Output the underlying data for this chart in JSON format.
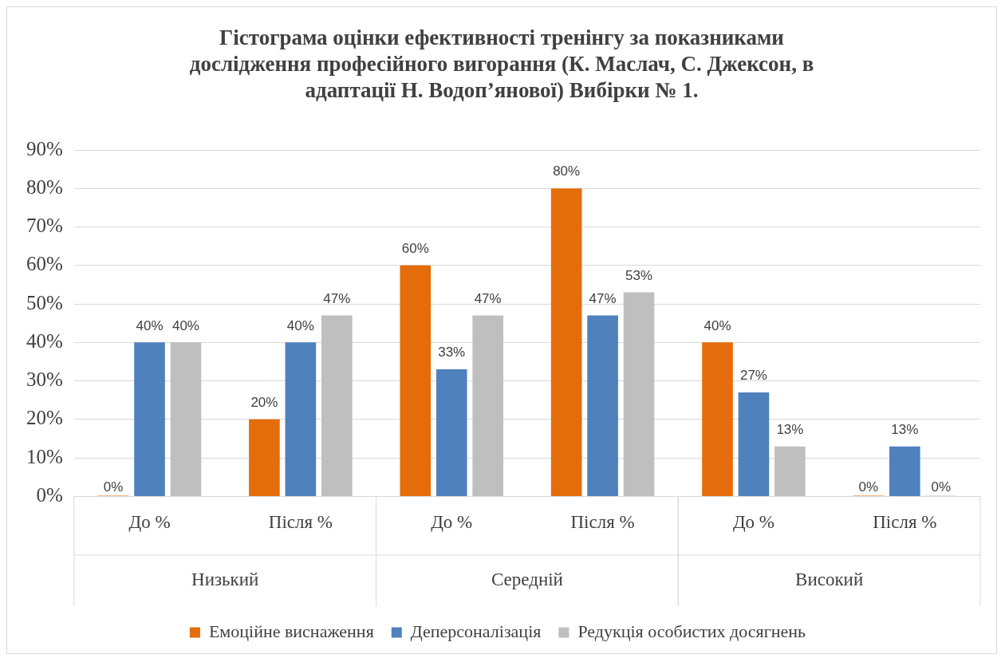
{
  "chart_data": {
    "type": "bar",
    "title": "Гістограма оцінки ефективності тренінгу за показниками дослідження професійного вигорання (К. Маслач, С. Джексон, в адаптації Н. Водоп’янової) Вибірки № 1.",
    "categories": [
      "До %",
      "Після %",
      "До %",
      "Після %",
      "До %",
      "Після %"
    ],
    "annotations": [
      "Низький",
      "Середній",
      "Високий"
    ],
    "series": [
      {
        "name": "Емоційне виснаження",
        "color": "#e46c0a",
        "values": [
          0,
          20,
          60,
          80,
          40,
          0
        ],
        "value_labels": [
          "0%",
          "20%",
          "60%",
          "80%",
          "40%",
          "0%"
        ]
      },
      {
        "name": "Деперсоналізація",
        "color": "#4f81bd",
        "values": [
          40,
          40,
          33,
          47,
          27,
          13
        ],
        "value_labels": [
          "40%",
          "40%",
          "33%",
          "47%",
          "27%",
          "13%"
        ]
      },
      {
        "name": "Редукція особистих досягнень",
        "color": "#bfbfbf",
        "values": [
          40,
          47,
          47,
          53,
          13,
          0
        ],
        "value_labels": [
          "40%",
          "47%",
          "47%",
          "53%",
          "13%",
          "0%"
        ]
      }
    ],
    "ylim": [
      0,
      90
    ],
    "yticks": [
      {
        "value": 0,
        "label": "0%"
      },
      {
        "value": 10,
        "label": "10%"
      },
      {
        "value": 20,
        "label": "20%"
      },
      {
        "value": 30,
        "label": "30%"
      },
      {
        "value": 40,
        "label": "40%"
      },
      {
        "value": 50,
        "label": "50%"
      },
      {
        "value": 60,
        "label": "60%"
      },
      {
        "value": 70,
        "label": "70%"
      },
      {
        "value": 80,
        "label": "80%"
      },
      {
        "value": 90,
        "label": "90%"
      }
    ],
    "grid": "y",
    "legend": "bottom"
  }
}
